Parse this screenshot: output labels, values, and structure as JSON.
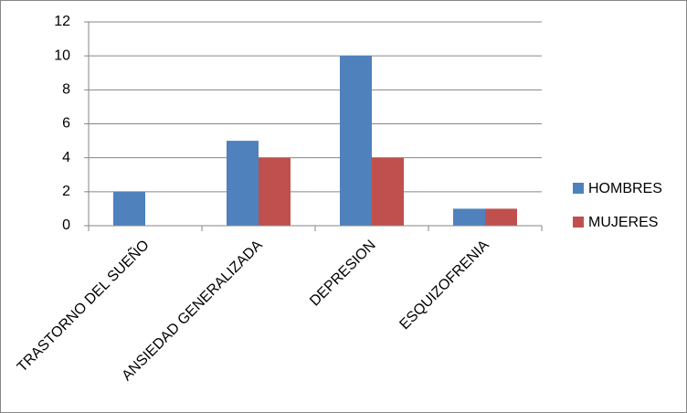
{
  "chart_data": {
    "type": "bar",
    "categories": [
      "TRASTORNO DEL SUEÑO",
      "ANSIEDAD GENERALIZADA",
      "DEPRESION",
      "ESQUIZOFRENIA"
    ],
    "series": [
      {
        "name": "HOMBRES",
        "color": "#4f81bd",
        "values": [
          2,
          5,
          10,
          1
        ]
      },
      {
        "name": "MUJERES",
        "color": "#c0504d",
        "values": [
          0,
          4,
          4,
          1
        ]
      }
    ],
    "ylim": [
      0,
      12
    ],
    "yticks": [
      0,
      2,
      4,
      6,
      8,
      10,
      12
    ],
    "grid": true,
    "legend": "right"
  }
}
